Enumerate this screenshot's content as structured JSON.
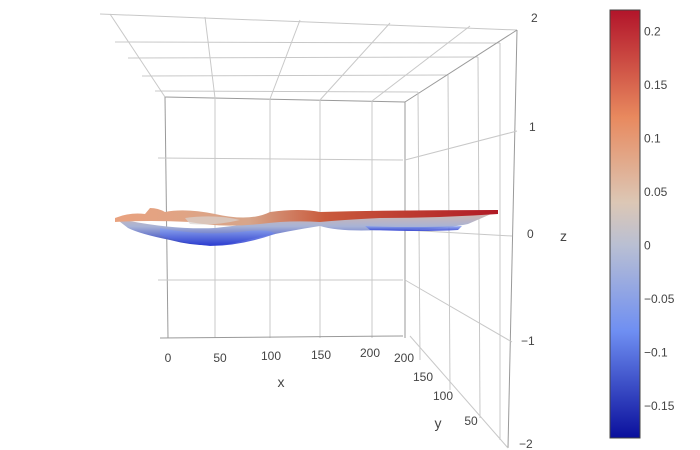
{
  "chart_data": {
    "type": "surface",
    "x_axis": {
      "title": "x",
      "ticks": [
        "0",
        "50",
        "100",
        "150",
        "200"
      ],
      "range": [
        0,
        230
      ]
    },
    "y_axis": {
      "title": "y",
      "ticks": [
        "50",
        "100",
        "150",
        "200"
      ],
      "range": [
        0,
        210
      ]
    },
    "z_axis": {
      "title": "z",
      "ticks": [
        "2",
        "1",
        "0",
        "−1",
        "−2"
      ],
      "range": [
        -2,
        2
      ]
    },
    "surface_z_range": [
      -0.18,
      0.22
    ],
    "colorscale": "coolwarm",
    "colors": {
      "low": "#0a0f9c",
      "mid": "#c4c6cc",
      "high": "#b2142a"
    },
    "colorbar": {
      "range": [
        -0.18,
        0.22
      ],
      "ticks": [
        "0.2",
        "0.15",
        "0.1",
        "0.05",
        "0",
        "−0.05",
        "−0.1",
        "−0.15"
      ]
    }
  }
}
